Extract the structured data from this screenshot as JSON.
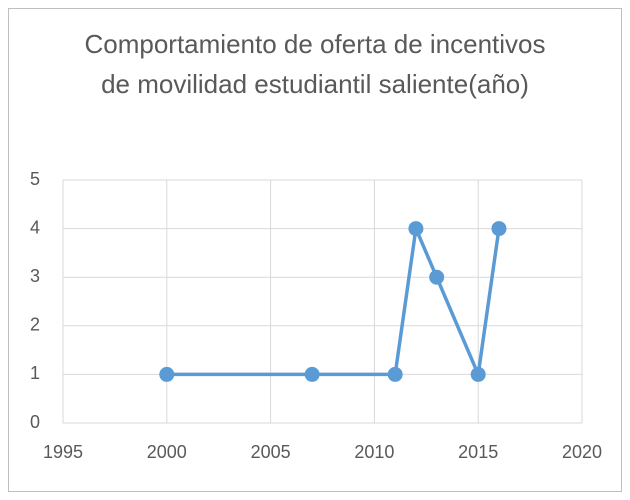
{
  "chart_data": {
    "type": "line",
    "title": "Comportamiento de oferta de incentivos de movilidad estudiantil saliente(año)",
    "x": [
      2000,
      2007,
      2011,
      2012,
      2013,
      2015,
      2016
    ],
    "series": [
      {
        "color": "#5b9bd5",
        "values": [
          1,
          1,
          1,
          4,
          3,
          1,
          4
        ]
      }
    ],
    "xlim": [
      1995,
      2020
    ],
    "xticks": [
      1995,
      2000,
      2005,
      2010,
      2015,
      2020
    ],
    "ylim": [
      0,
      5
    ],
    "yticks": [
      0,
      1,
      2,
      3,
      4,
      5
    ],
    "grid": true,
    "markers": true
  }
}
